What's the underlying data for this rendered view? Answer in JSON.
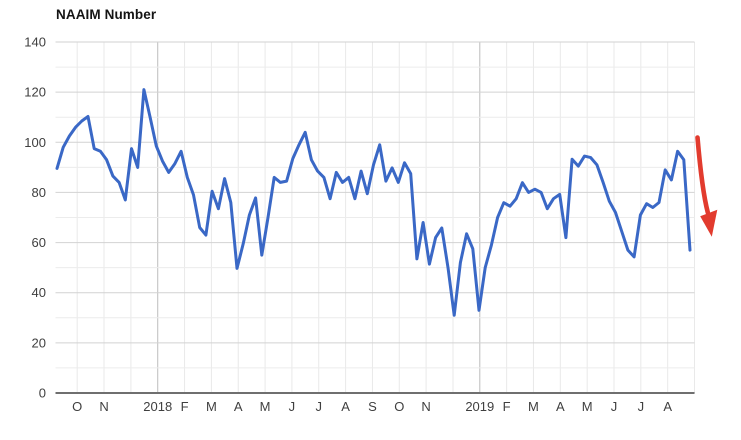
{
  "chart_data": {
    "type": "line",
    "title": "NAAIM Number",
    "series_name": "NAAIM Number",
    "frequency": "weekly",
    "x_ticks": [
      "O",
      "N",
      "",
      "2018",
      "F",
      "M",
      "A",
      "M",
      "J",
      "J",
      "A",
      "S",
      "O",
      "N",
      "",
      "2019",
      "F",
      "M",
      "A",
      "M",
      "J",
      "J",
      "A",
      ""
    ],
    "year_tick_indices": [
      3,
      15
    ],
    "x_range_note": "Oct 2017 through Aug 2019, December and trailing September gridlines unlabeled",
    "y_ticks": [
      0,
      20,
      40,
      60,
      80,
      100,
      120,
      140
    ],
    "y_minor_step": 10,
    "ylim": [
      0,
      140
    ],
    "grid": true,
    "legend": "none",
    "values": [
      89.6,
      98,
      102.5,
      106,
      108.5,
      110.3,
      97.5,
      96.4,
      93,
      86.5,
      84,
      77,
      97.5,
      90,
      121,
      110,
      98.5,
      92.5,
      88,
      91.5,
      96.4,
      86,
      79,
      66,
      63,
      80.5,
      73.5,
      85.5,
      76,
      49.7,
      59.5,
      71,
      77.8,
      55,
      70,
      86,
      84,
      84.5,
      93.5,
      99,
      104,
      93,
      88.5,
      86,
      77.5,
      88,
      84,
      86,
      77.5,
      88.5,
      79.5,
      91,
      99,
      84.5,
      89.8,
      84,
      91.8,
      87.5,
      53.5,
      68,
      51.4,
      62,
      65.8,
      50,
      31,
      52,
      63.5,
      57.5,
      33,
      50,
      59,
      70,
      75.9,
      74.5,
      77.5,
      83.9,
      80,
      81.3,
      80,
      73.5,
      77.5,
      79.2,
      62,
      93.2,
      90.5,
      94.5,
      93.9,
      91,
      84,
      76.5,
      72,
      64.5,
      57,
      54.3,
      71,
      75.5,
      74,
      76,
      89,
      85,
      96.4,
      93,
      57
    ],
    "line_color": "#3a68c6",
    "annotation": {
      "icon": "down-arrow",
      "color": "#e23b2e",
      "meaning": "highlights sharp drop of latest reading to ~57"
    },
    "style_colors": {
      "grid_minor": "#ececec",
      "grid_major": "#d2d2d2",
      "grid_month": "#e9e9e9",
      "grid_year": "#bdbdbd",
      "axis_line": "#6f6f6f",
      "tick_label": "#3f3f3f",
      "title": "#141414"
    }
  }
}
